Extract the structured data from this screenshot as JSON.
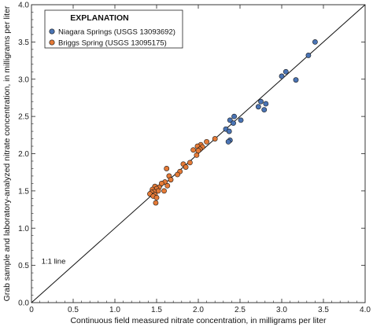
{
  "chart_data": {
    "type": "scatter",
    "xlabel": "Continuous field measured nitrate concentration, in milligrams per liter",
    "ylabel": "Grab sample and laboratory-analyzed nitrate concentration, in milligrams per liter",
    "xlim": [
      0,
      4
    ],
    "ylim": [
      0,
      4
    ],
    "xticks": [
      0,
      0.5,
      1.0,
      1.5,
      2.0,
      2.5,
      3.0,
      3.5,
      4.0
    ],
    "xtick_labels": [
      "0",
      "0.5",
      "1.0",
      "1.5",
      "2.0",
      "2.5",
      "3.0",
      "3.5",
      "4.0"
    ],
    "yticks": [
      0,
      0.5,
      1.0,
      1.5,
      2.0,
      2.5,
      3.0,
      3.5,
      4.0
    ],
    "ytick_labels": [
      "0.0",
      "0.5",
      "1.0",
      "1.5",
      "2.0",
      "2.5",
      "3.0",
      "3.5",
      "4.0"
    ],
    "grid": false,
    "legend": {
      "title": "EXPLANATION",
      "placement": "top-left"
    },
    "reference_line": {
      "label": "1:1 line",
      "from": [
        0,
        0
      ],
      "to": [
        4,
        4
      ],
      "label_at": [
        0.12,
        0.52
      ]
    },
    "series": [
      {
        "name": "Niagara Springs (USGS 13093692)",
        "color": "#4a74b5",
        "points": [
          [
            3.4,
            3.5
          ],
          [
            3.32,
            3.32
          ],
          [
            3.05,
            3.1
          ],
          [
            3.0,
            3.04
          ],
          [
            3.17,
            2.99
          ],
          [
            2.75,
            2.7
          ],
          [
            2.81,
            2.67
          ],
          [
            2.72,
            2.63
          ],
          [
            2.79,
            2.59
          ],
          [
            2.43,
            2.5
          ],
          [
            2.51,
            2.45
          ],
          [
            2.38,
            2.45
          ],
          [
            2.42,
            2.41
          ],
          [
            2.33,
            2.33
          ],
          [
            2.37,
            2.3
          ],
          [
            2.38,
            2.18
          ],
          [
            2.36,
            2.16
          ]
        ]
      },
      {
        "name": "Briggs Spring (USGS 13095175)",
        "color": "#e57a36",
        "points": [
          [
            2.2,
            2.2
          ],
          [
            2.1,
            2.16
          ],
          [
            2.03,
            2.12
          ],
          [
            1.99,
            2.1
          ],
          [
            2.05,
            2.09
          ],
          [
            2.02,
            2.06
          ],
          [
            1.94,
            2.05
          ],
          [
            2.0,
            2.04
          ],
          [
            1.98,
            1.98
          ],
          [
            1.9,
            1.88
          ],
          [
            1.82,
            1.86
          ],
          [
            1.85,
            1.82
          ],
          [
            1.78,
            1.76
          ],
          [
            1.62,
            1.8
          ],
          [
            1.75,
            1.72
          ],
          [
            1.65,
            1.7
          ],
          [
            1.67,
            1.65
          ],
          [
            1.6,
            1.62
          ],
          [
            1.56,
            1.6
          ],
          [
            1.63,
            1.57
          ],
          [
            1.53,
            1.55
          ],
          [
            1.48,
            1.56
          ],
          [
            1.5,
            1.53
          ],
          [
            1.45,
            1.52
          ],
          [
            1.52,
            1.5
          ],
          [
            1.47,
            1.49
          ],
          [
            1.44,
            1.48
          ],
          [
            1.42,
            1.46
          ],
          [
            1.48,
            1.45
          ],
          [
            1.46,
            1.43
          ],
          [
            1.5,
            1.41
          ],
          [
            1.49,
            1.34
          ],
          [
            1.59,
            1.5
          ]
        ]
      }
    ]
  }
}
